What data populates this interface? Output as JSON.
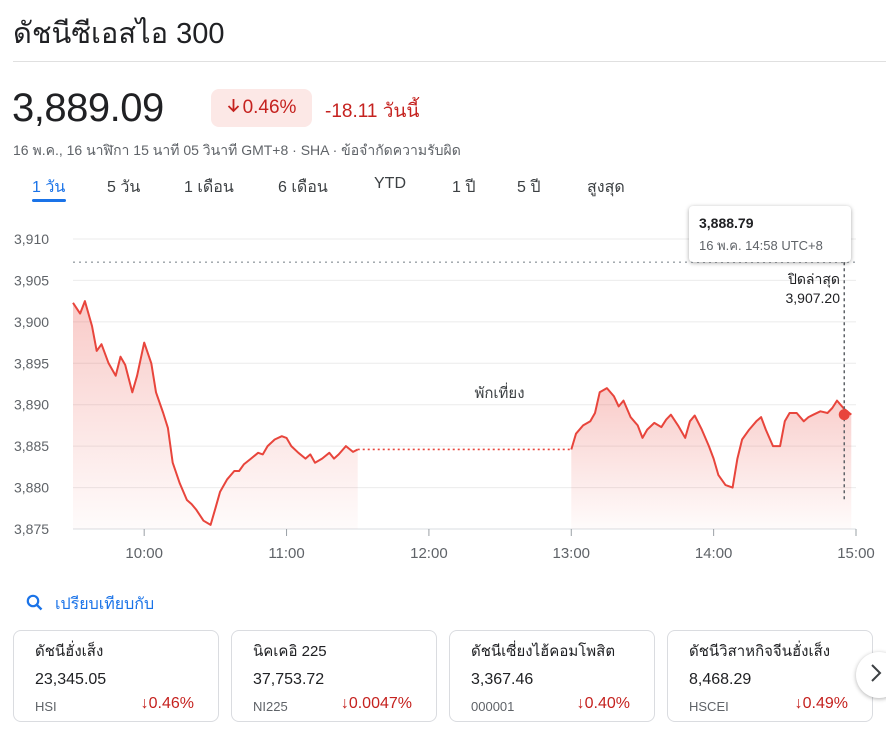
{
  "header": {
    "title": "ดัชนีซีเอสไอ 300",
    "price": "3,889.09",
    "change_pct": "0.46%",
    "change_abs": "-18.11 วันนี้",
    "meta": "16 พ.ค., 16 นาฬิกา 15 นาที 05 วินาที GMT+8 · SHA · ข้อจำกัดความรับผิด"
  },
  "tabs": [
    "1 วัน",
    "5 วัน",
    "1 เดือน",
    "6 เดือน",
    "YTD",
    "1 ปี",
    "5 ปี",
    "สูงสุด"
  ],
  "tooltip": {
    "value": "3,888.79",
    "time": "16 พ.ค. 14:58 UTC+8"
  },
  "prev_close": {
    "label": "ปิดล่าสุด",
    "value": "3,907.20"
  },
  "compare_label": "เปรียบเทียบกับ",
  "cards": [
    {
      "name": "ดัชนีฮั่งเส็ง",
      "value": "23,345.05",
      "symbol": "HSI",
      "change": "0.46%"
    },
    {
      "name": "นิคเคอิ 225",
      "value": "37,753.72",
      "symbol": "NI225",
      "change": "0.0047%"
    },
    {
      "name": "ดัชนีเซี่ยงไฮ้คอมโพสิต",
      "value": "3,367.46",
      "symbol": "000001",
      "change": "0.40%"
    },
    {
      "name": "ดัชนีวิสาหกิจจีนฮั่งเส็ง",
      "value": "8,468.29",
      "symbol": "HSCEI",
      "change": "0.49%"
    }
  ],
  "colors": {
    "down": "#c5221f",
    "line": "#e8453c",
    "accent": "#1a73e8"
  },
  "chart_data": {
    "type": "line",
    "x_ticks": [
      "10:00",
      "11:00",
      "12:00",
      "13:00",
      "14:00",
      "15:00"
    ],
    "y_ticks": [
      "3,910",
      "3,905",
      "3,900",
      "3,895",
      "3,890",
      "3,885",
      "3,880",
      "3,875"
    ],
    "ylim": [
      3875,
      3910
    ],
    "baseline": 3907.2,
    "break_label": "พักเที่ยง",
    "morning": {
      "x": [
        "09:30",
        "09:33",
        "09:35",
        "09:38",
        "09:40",
        "09:42",
        "09:45",
        "09:48",
        "09:50",
        "09:52",
        "09:55",
        "09:57",
        "10:00",
        "10:03",
        "10:05",
        "10:08",
        "10:10",
        "10:12",
        "10:15",
        "10:18",
        "10:20",
        "10:22",
        "10:25",
        "10:28",
        "10:30",
        "10:32",
        "10:35",
        "10:38",
        "10:40",
        "10:42",
        "10:45",
        "10:48",
        "10:50",
        "10:52",
        "10:55",
        "10:58",
        "11:00",
        "11:02",
        "11:05",
        "11:08",
        "11:10",
        "11:12",
        "11:15",
        "11:18",
        "11:20",
        "11:22",
        "11:25",
        "11:28",
        "11:30"
      ],
      "y": [
        3902.3,
        3901.0,
        3902.5,
        3899.5,
        3896.5,
        3897.3,
        3895.0,
        3893.5,
        3895.8,
        3894.8,
        3891.5,
        3893.5,
        3897.5,
        3895.0,
        3891.5,
        3889.0,
        3887.2,
        3883.0,
        3880.5,
        3878.5,
        3878.0,
        3877.3,
        3876.0,
        3875.5,
        3877.5,
        3879.5,
        3881.0,
        3882.0,
        3882.0,
        3882.8,
        3883.5,
        3884.2,
        3884.0,
        3885.0,
        3885.8,
        3886.2,
        3886.0,
        3885.0,
        3884.2,
        3883.5,
        3884.0,
        3883.0,
        3883.5,
        3884.2,
        3883.5,
        3884.0,
        3885.0,
        3884.3,
        3884.6
      ]
    },
    "afternoon": {
      "x": [
        "13:00",
        "13:02",
        "13:05",
        "13:08",
        "13:10",
        "13:12",
        "13:15",
        "13:18",
        "13:20",
        "13:22",
        "13:25",
        "13:28",
        "13:30",
        "13:32",
        "13:35",
        "13:38",
        "13:40",
        "13:42",
        "13:45",
        "13:48",
        "13:50",
        "13:52",
        "13:55",
        "13:58",
        "14:00",
        "14:02",
        "14:05",
        "14:08",
        "14:10",
        "14:12",
        "14:15",
        "14:18",
        "14:20",
        "14:22",
        "14:25",
        "14:28",
        "14:30",
        "14:32",
        "14:35",
        "14:38",
        "14:40",
        "14:42",
        "14:45",
        "14:48",
        "14:50",
        "14:52",
        "14:55",
        "14:58"
      ],
      "y": [
        3884.6,
        3886.5,
        3887.5,
        3888.0,
        3889.0,
        3891.5,
        3892.0,
        3891.0,
        3889.8,
        3890.5,
        3888.5,
        3887.5,
        3886.0,
        3887.0,
        3887.8,
        3887.3,
        3888.2,
        3888.8,
        3887.5,
        3886.0,
        3888.0,
        3888.7,
        3887.0,
        3885.0,
        3883.5,
        3881.5,
        3880.3,
        3880.0,
        3883.5,
        3885.8,
        3887.0,
        3888.0,
        3888.5,
        3887.0,
        3885.0,
        3885.0,
        3888.0,
        3889.0,
        3889.0,
        3888.0,
        3888.5,
        3888.8,
        3889.2,
        3889.0,
        3889.6,
        3890.5,
        3889.5,
        3888.8
      ]
    }
  }
}
